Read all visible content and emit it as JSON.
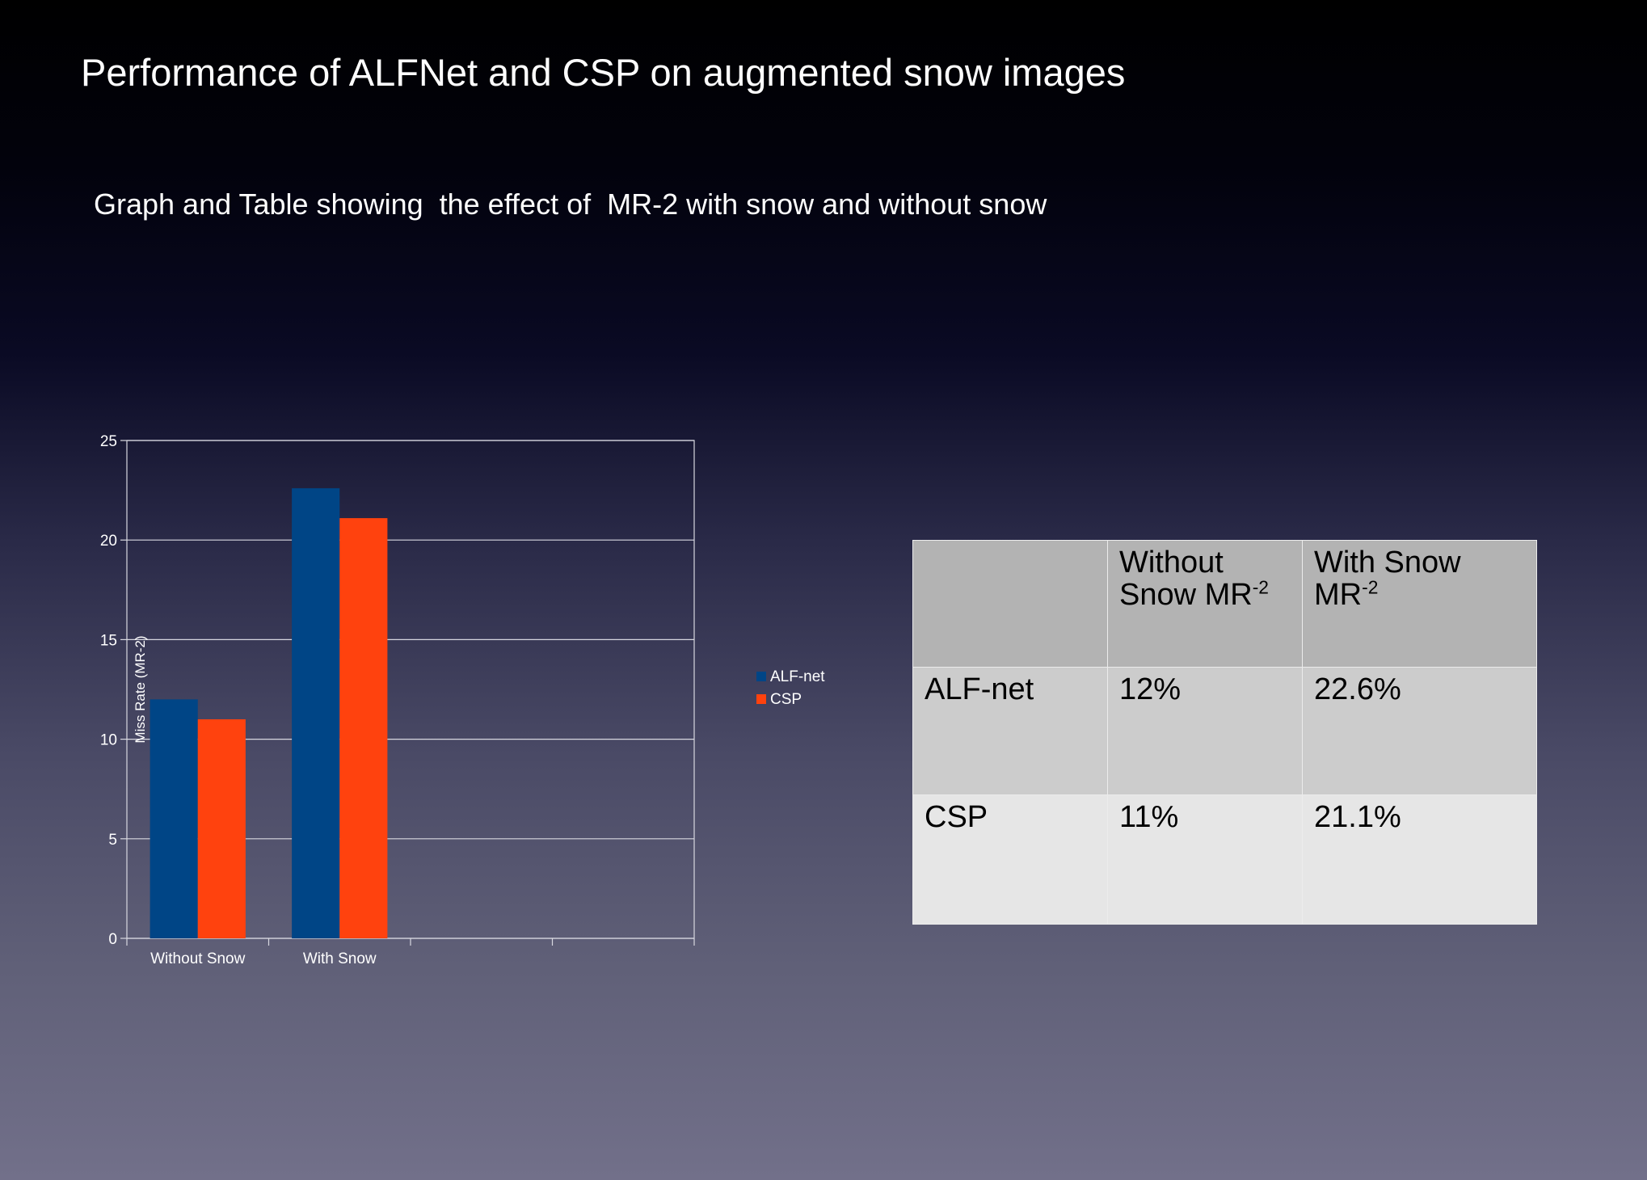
{
  "slide": {
    "title": "Performance of ALFNet and CSP on augmented snow images",
    "subtitle": "Graph and Table showing  the effect of  MR-2 with snow and without snow"
  },
  "chart_data": {
    "type": "bar",
    "categories": [
      "Without Snow",
      "With Snow",
      "",
      ""
    ],
    "series": [
      {
        "name": "ALF-net",
        "values": [
          12,
          22.6,
          null,
          null
        ],
        "color": "#004586"
      },
      {
        "name": "CSP",
        "values": [
          11,
          21.1,
          null,
          null
        ],
        "color": "#ff420e"
      }
    ],
    "ylabel": "Miss Rate (MR-2)",
    "xlabel": "",
    "ylim": [
      0,
      25
    ],
    "yticks": [
      0,
      5,
      10,
      15,
      20,
      25
    ],
    "grid": true,
    "legend": "right"
  },
  "table": {
    "headers": [
      {
        "text": "",
        "sup": ""
      },
      {
        "text": "Without Snow MR",
        "sup": "-2"
      },
      {
        "text": "With Snow MR",
        "sup": "-2"
      }
    ],
    "rows": [
      [
        "ALF-net",
        "12%",
        "22.6%"
      ],
      [
        "CSP",
        "11%",
        "21.1%"
      ]
    ]
  }
}
